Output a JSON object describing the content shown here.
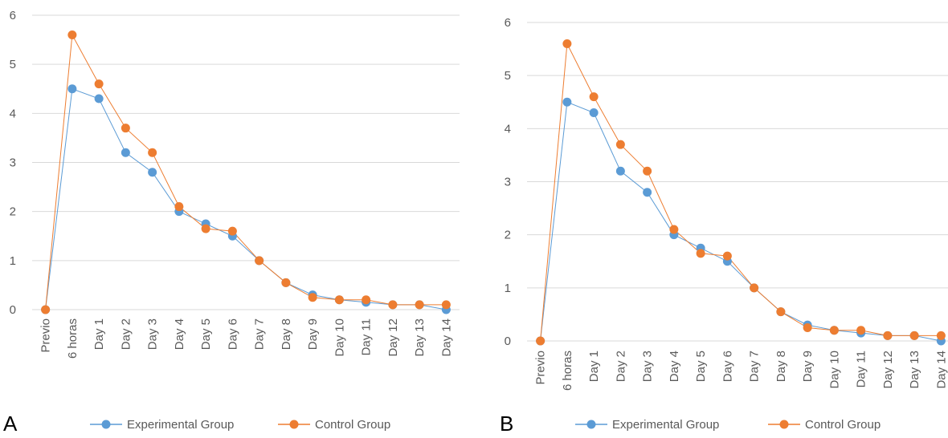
{
  "colors": {
    "experimental": "#5B9BD5",
    "control": "#ED7D31",
    "grid": "#D9D9D9",
    "text": "#595959"
  },
  "chart_data": [
    {
      "panel_label": "A",
      "type": "line",
      "categories": [
        "Previo",
        "6 horas",
        "Day 1",
        "Day 2",
        "Day 3",
        "Day 4",
        "Day 5",
        "Day 6",
        "Day 7",
        "Day 8",
        "Day 9",
        "Day 10",
        "Day 11",
        "Day 12",
        "Day 13",
        "Day 14"
      ],
      "yticks": [
        "0",
        "1",
        "2",
        "3",
        "4",
        "5",
        "6"
      ],
      "ylim": [
        0,
        6
      ],
      "grid": true,
      "legend_position": "bottom",
      "series": [
        {
          "name": "Experimental Group",
          "values": [
            0,
            4.5,
            4.3,
            3.2,
            2.8,
            2.0,
            1.75,
            1.5,
            1.0,
            0.55,
            0.3,
            0.2,
            0.15,
            0.1,
            0.1,
            0
          ]
        },
        {
          "name": "Control Group",
          "values": [
            0,
            5.6,
            4.6,
            3.7,
            3.2,
            2.1,
            1.65,
            1.6,
            1.0,
            0.55,
            0.25,
            0.2,
            0.2,
            0.1,
            0.1,
            0.1
          ]
        }
      ]
    },
    {
      "panel_label": "B",
      "type": "line",
      "categories": [
        "Previo",
        "6 horas",
        "Day 1",
        "Day 2",
        "Day 3",
        "Day 4",
        "Day 5",
        "Day 6",
        "Day 7",
        "Day 8",
        "Day 9",
        "Day 10",
        "Day 11",
        "Day 12",
        "Day 13",
        "Day 14"
      ],
      "yticks": [
        "0",
        "1",
        "2",
        "3",
        "4",
        "5",
        "6"
      ],
      "ylim": [
        0,
        6
      ],
      "grid": true,
      "legend_position": "bottom",
      "series": [
        {
          "name": "Experimental Group",
          "values": [
            0,
            4.5,
            4.3,
            3.2,
            2.8,
            2.0,
            1.75,
            1.5,
            1.0,
            0.55,
            0.3,
            0.2,
            0.15,
            0.1,
            0.1,
            0
          ]
        },
        {
          "name": "Control Group",
          "values": [
            0,
            5.6,
            4.6,
            3.7,
            3.2,
            2.1,
            1.65,
            1.6,
            1.0,
            0.55,
            0.25,
            0.2,
            0.2,
            0.1,
            0.1,
            0.1
          ]
        }
      ]
    }
  ]
}
